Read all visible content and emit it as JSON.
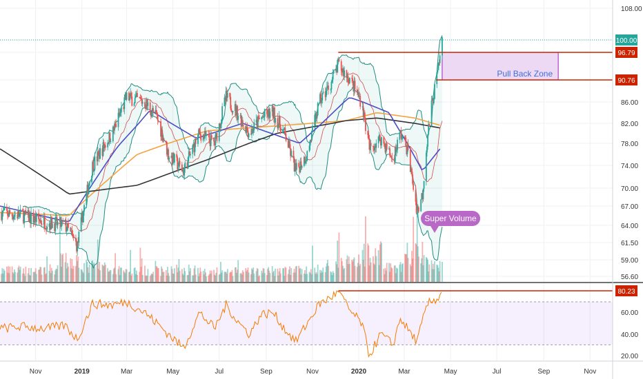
{
  "chart_data": [
    {
      "type": "candlestick",
      "panel": "price",
      "x_ticks": [
        "Nov",
        "2019",
        "Mar",
        "May",
        "Jul",
        "Sep",
        "Nov",
        "2020",
        "Mar",
        "May",
        "Jul",
        "Sep",
        "Nov"
      ],
      "y_ticks": [
        "108.00",
        "100.00",
        "96.79",
        "90.76",
        "86.00",
        "82.00",
        "78.00",
        "74.00",
        "70.00",
        "67.00",
        "64.00",
        "61.50",
        "59.00",
        "56.60"
      ],
      "y_scale": "log",
      "ylim": [
        56.6,
        108.0
      ],
      "price_labels": [
        {
          "value": "100.00",
          "color": "#26a69a"
        },
        {
          "value": "96.79",
          "color": "#cc2200"
        },
        {
          "value": "90.76",
          "color": "#cc2200"
        }
      ],
      "horizontal_lines": [
        96.79,
        90.76
      ],
      "dotted_line": 100.0,
      "zone": {
        "label": "Pull Back Zone",
        "top": 96.79,
        "bottom": 90.76,
        "from": "2020-04-20",
        "to": "2020-09-20"
      },
      "annotation": "Super Volume",
      "price_path": [
        {
          "date": "2018-09-15",
          "close": 66.0
        },
        {
          "date": "2018-10-15",
          "close": 65.5
        },
        {
          "date": "2018-11-15",
          "close": 64.5
        },
        {
          "date": "2018-12-10",
          "close": 64.0
        },
        {
          "date": "2018-12-26",
          "close": 61.0
        },
        {
          "date": "2019-01-15",
          "close": 74.0
        },
        {
          "date": "2019-02-10",
          "close": 80.0
        },
        {
          "date": "2019-03-01",
          "close": 87.0
        },
        {
          "date": "2019-03-25",
          "close": 86.0
        },
        {
          "date": "2019-04-10",
          "close": 83.0
        },
        {
          "date": "2019-04-25",
          "close": 76.0
        },
        {
          "date": "2019-05-15",
          "close": 73.0
        },
        {
          "date": "2019-06-05",
          "close": 80.0
        },
        {
          "date": "2019-06-25",
          "close": 78.0
        },
        {
          "date": "2019-07-10",
          "close": 87.0
        },
        {
          "date": "2019-07-25",
          "close": 84.0
        },
        {
          "date": "2019-08-10",
          "close": 80.0
        },
        {
          "date": "2019-08-25",
          "close": 83.0
        },
        {
          "date": "2019-09-10",
          "close": 84.0
        },
        {
          "date": "2019-09-25",
          "close": 80.0
        },
        {
          "date": "2019-10-10",
          "close": 73.0
        },
        {
          "date": "2019-10-25",
          "close": 76.0
        },
        {
          "date": "2019-11-10",
          "close": 86.0
        },
        {
          "date": "2019-11-25",
          "close": 90.0
        },
        {
          "date": "2019-12-05",
          "close": 94.0
        },
        {
          "date": "2019-12-20",
          "close": 91.0
        },
        {
          "date": "2020-01-05",
          "close": 86.0
        },
        {
          "date": "2020-01-15",
          "close": 77.0
        },
        {
          "date": "2020-01-30",
          "close": 79.0
        },
        {
          "date": "2020-02-15",
          "close": 75.0
        },
        {
          "date": "2020-02-25",
          "close": 80.0
        },
        {
          "date": "2020-03-05",
          "close": 77.0
        },
        {
          "date": "2020-03-18",
          "close": 66.0
        },
        {
          "date": "2020-03-25",
          "close": 69.0
        },
        {
          "date": "2020-04-01",
          "close": 80.0
        },
        {
          "date": "2020-04-08",
          "close": 87.0
        },
        {
          "date": "2020-04-15",
          "close": 93.0
        },
        {
          "date": "2020-04-20",
          "close": 100.0
        }
      ],
      "moving_averages": [
        {
          "color": "#f4a340",
          "points": [
            {
              "date": "2018-09-15",
              "value": 66.0
            },
            {
              "date": "2018-12-15",
              "value": 65.5
            },
            {
              "date": "2019-03-15",
              "value": 76.0
            },
            {
              "date": "2019-06-15",
              "value": 80.5
            },
            {
              "date": "2019-09-15",
              "value": 81.5
            },
            {
              "date": "2019-12-15",
              "value": 82.5
            },
            {
              "date": "2020-01-25",
              "value": 84.0
            },
            {
              "date": "2020-03-15",
              "value": 83.0
            },
            {
              "date": "2020-04-20",
              "value": 81.5
            }
          ]
        },
        {
          "color": "#333333",
          "points": [
            {
              "date": "2018-09-15",
              "value": 77.0
            },
            {
              "date": "2018-12-15",
              "value": 69.0
            },
            {
              "date": "2019-03-15",
              "value": 70.5
            },
            {
              "date": "2019-06-15",
              "value": 75.0
            },
            {
              "date": "2019-09-15",
              "value": 80.0
            },
            {
              "date": "2019-12-15",
              "value": 82.5
            },
            {
              "date": "2020-01-25",
              "value": 83.0
            },
            {
              "date": "2020-03-15",
              "value": 82.0
            },
            {
              "date": "2020-04-20",
              "value": 81.0
            }
          ]
        },
        {
          "color": "#4a4ec5",
          "points": [
            {
              "date": "2018-09-15",
              "value": 67.0
            },
            {
              "date": "2018-12-15",
              "value": 64.5
            },
            {
              "date": "2019-02-15",
              "value": 77.0
            },
            {
              "date": "2019-04-01",
              "value": 84.5
            },
            {
              "date": "2019-06-01",
              "value": 79.0
            },
            {
              "date": "2019-08-01",
              "value": 82.0
            },
            {
              "date": "2019-10-15",
              "value": 78.0
            },
            {
              "date": "2019-12-20",
              "value": 87.0
            },
            {
              "date": "2020-02-10",
              "value": 84.0
            },
            {
              "date": "2020-03-25",
              "value": 73.0
            },
            {
              "date": "2020-04-20",
              "value": 77.5
            }
          ]
        }
      ],
      "bollinger_color": "#1e8c80",
      "volume": {
        "dates": [
          "2018-10",
          "2018-11",
          "2018-12",
          "2019-01",
          "2019-02",
          "2019-03",
          "2019-04",
          "2019-05",
          "2019-06",
          "2019-07",
          "2019-08",
          "2019-09",
          "2019-10",
          "2019-11",
          "2019-12",
          "2020-01",
          "2020-02",
          "2020-03",
          "2020-04"
        ],
        "values": [
          1.0,
          1.1,
          1.9,
          1.4,
          1.1,
          1.0,
          1.0,
          1.1,
          0.9,
          0.9,
          0.9,
          1.0,
          1.0,
          1.1,
          1.7,
          2.6,
          1.3,
          2.5,
          1.4
        ]
      }
    },
    {
      "type": "line",
      "panel": "oscillator",
      "y_ticks": [
        "80.23",
        "60.00",
        "40.00",
        "20.00"
      ],
      "ylim": [
        15,
        83
      ],
      "band": [
        30,
        70
      ],
      "current_label": {
        "value": "80.23",
        "color": "#cc2200"
      },
      "line_color": "#f57c00",
      "points": [
        {
          "date": "2018-09-15",
          "value": 45
        },
        {
          "date": "2018-10-15",
          "value": 47
        },
        {
          "date": "2018-11-15",
          "value": 45
        },
        {
          "date": "2018-12-10",
          "value": 48
        },
        {
          "date": "2018-12-26",
          "value": 35
        },
        {
          "date": "2019-01-15",
          "value": 68
        },
        {
          "date": "2019-02-10",
          "value": 67
        },
        {
          "date": "2019-03-01",
          "value": 70
        },
        {
          "date": "2019-03-25",
          "value": 60
        },
        {
          "date": "2019-04-10",
          "value": 50
        },
        {
          "date": "2019-04-25",
          "value": 40
        },
        {
          "date": "2019-05-15",
          "value": 27
        },
        {
          "date": "2019-06-05",
          "value": 60
        },
        {
          "date": "2019-06-25",
          "value": 45
        },
        {
          "date": "2019-07-10",
          "value": 67
        },
        {
          "date": "2019-07-25",
          "value": 52
        },
        {
          "date": "2019-08-10",
          "value": 40
        },
        {
          "date": "2019-08-25",
          "value": 58
        },
        {
          "date": "2019-09-10",
          "value": 60
        },
        {
          "date": "2019-09-25",
          "value": 45
        },
        {
          "date": "2019-10-10",
          "value": 33
        },
        {
          "date": "2019-10-25",
          "value": 50
        },
        {
          "date": "2019-11-10",
          "value": 68
        },
        {
          "date": "2019-11-25",
          "value": 74
        },
        {
          "date": "2019-12-05",
          "value": 80
        },
        {
          "date": "2019-12-20",
          "value": 62
        },
        {
          "date": "2020-01-05",
          "value": 50
        },
        {
          "date": "2020-01-15",
          "value": 20
        },
        {
          "date": "2020-01-30",
          "value": 40
        },
        {
          "date": "2020-02-15",
          "value": 30
        },
        {
          "date": "2020-02-25",
          "value": 55
        },
        {
          "date": "2020-03-05",
          "value": 45
        },
        {
          "date": "2020-03-18",
          "value": 33
        },
        {
          "date": "2020-03-25",
          "value": 52
        },
        {
          "date": "2020-04-01",
          "value": 68
        },
        {
          "date": "2020-04-08",
          "value": 71
        },
        {
          "date": "2020-04-15",
          "value": 74
        },
        {
          "date": "2020-04-20",
          "value": 80.23
        }
      ]
    }
  ]
}
